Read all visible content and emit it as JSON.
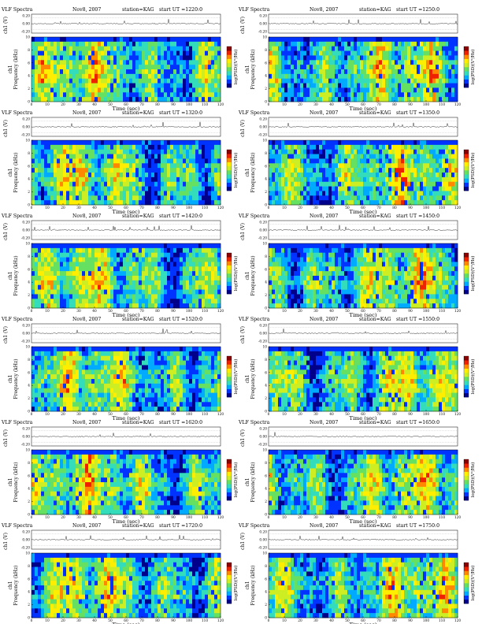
{
  "chart_data": [
    {
      "type": "heatmap",
      "header": "VLF Spectra",
      "date": "Nov8, 2007",
      "station": "station=KAG",
      "start": "start  UT =1220:0",
      "wave_label": "ch1 (V)",
      "wave_ticks": [
        "0.20",
        "0.00",
        "-0.20"
      ],
      "wave_ylim": [
        -0.2,
        0.2
      ],
      "channel": "ch1",
      "ylabel": "Frequency (kHz)",
      "yticks": [
        "0",
        "2",
        "4",
        "6",
        "8",
        "10"
      ],
      "ylim": [
        0,
        10
      ],
      "xlabel": "Time (sec)",
      "xticks": [
        "0",
        "10",
        "20",
        "30",
        "40",
        "50",
        "60",
        "70",
        "80",
        "90",
        "100",
        "110",
        "120"
      ],
      "xlim": [
        0,
        120
      ],
      "colorbar_label": "log(PSD)(V²/Hz)"
    },
    {
      "type": "heatmap",
      "header": "VLF Spectra",
      "date": "Nov8, 2007",
      "station": "station=KAG",
      "start": "start  UT =1250:0",
      "wave_label": "ch1 (V)",
      "wave_ticks": [
        "0.20",
        "0.00",
        "-0.20"
      ],
      "wave_ylim": [
        -0.2,
        0.2
      ],
      "channel": "ch1",
      "ylabel": "Frequency (kHz)",
      "yticks": [
        "0",
        "2",
        "4",
        "6",
        "8",
        "10"
      ],
      "ylim": [
        0,
        10
      ],
      "xlabel": "Time (sec)",
      "xticks": [
        "0",
        "10",
        "20",
        "30",
        "40",
        "50",
        "60",
        "70",
        "80",
        "90",
        "100",
        "110",
        "120"
      ],
      "xlim": [
        0,
        120
      ],
      "colorbar_label": "log(PSD)(V²/Hz)"
    },
    {
      "type": "heatmap",
      "header": "VLF Spectra",
      "date": "Nov8, 2007",
      "station": "station=KAG",
      "start": "start  UT =1320:0",
      "wave_label": "ch1 (V)",
      "wave_ticks": [
        "0.20",
        "0.00",
        "-0.20"
      ],
      "wave_ylim": [
        -0.2,
        0.2
      ],
      "channel": "ch1",
      "ylabel": "Frequency (kHz)",
      "yticks": [
        "0",
        "2",
        "4",
        "6",
        "8",
        "10"
      ],
      "ylim": [
        0,
        10
      ],
      "xlabel": "Time (sec)",
      "xticks": [
        "0",
        "10",
        "20",
        "30",
        "40",
        "50",
        "60",
        "70",
        "80",
        "90",
        "100",
        "110",
        "120"
      ],
      "xlim": [
        0,
        120
      ],
      "colorbar_label": "log(PSD)(V²/Hz)"
    },
    {
      "type": "heatmap",
      "header": "VLF Spectra",
      "date": "Nov8, 2007",
      "station": "station=KAG",
      "start": "start  UT =1350:0",
      "wave_label": "ch1 (V)",
      "wave_ticks": [
        "0.20",
        "0.00",
        "-0.20"
      ],
      "wave_ylim": [
        -0.2,
        0.2
      ],
      "channel": "ch1",
      "ylabel": "Frequency (kHz)",
      "yticks": [
        "0",
        "2",
        "4",
        "6",
        "8",
        "10"
      ],
      "ylim": [
        0,
        10
      ],
      "xlabel": "Time (sec)",
      "xticks": [
        "0",
        "10",
        "20",
        "30",
        "40",
        "50",
        "60",
        "70",
        "80",
        "90",
        "100",
        "110",
        "120"
      ],
      "xlim": [
        0,
        120
      ],
      "colorbar_label": "log(PSD)(V²/Hz)"
    },
    {
      "type": "heatmap",
      "header": "VLF Spectra",
      "date": "Nov8, 2007",
      "station": "station=KAG",
      "start": "start  UT =1420:0",
      "wave_label": "ch1 (V)",
      "wave_ticks": [
        "0.20",
        "0.00",
        "-0.20"
      ],
      "wave_ylim": [
        -0.2,
        0.2
      ],
      "channel": "ch1",
      "ylabel": "Frequency (kHz)",
      "yticks": [
        "0",
        "2",
        "4",
        "6",
        "8",
        "10"
      ],
      "ylim": [
        0,
        10
      ],
      "xlabel": "Time (sec)",
      "xticks": [
        "0",
        "10",
        "20",
        "30",
        "40",
        "50",
        "60",
        "70",
        "80",
        "90",
        "100",
        "110",
        "120"
      ],
      "xlim": [
        0,
        120
      ],
      "colorbar_label": "log(PSD)(V²/Hz)"
    },
    {
      "type": "heatmap",
      "header": "VLF Spectra",
      "date": "Nov8, 2007",
      "station": "station=KAG",
      "start": "start  UT =1450:0",
      "wave_label": "ch1 (V)",
      "wave_ticks": [
        "0.20",
        "0.00",
        "-0.20"
      ],
      "wave_ylim": [
        -0.2,
        0.2
      ],
      "channel": "ch1",
      "ylabel": "Frequency (kHz)",
      "yticks": [
        "0",
        "2",
        "4",
        "6",
        "8",
        "10"
      ],
      "ylim": [
        0,
        10
      ],
      "xlabel": "Time (sec)",
      "xticks": [
        "0",
        "10",
        "20",
        "30",
        "40",
        "50",
        "60",
        "70",
        "80",
        "90",
        "100",
        "110",
        "120"
      ],
      "xlim": [
        0,
        120
      ],
      "colorbar_label": "log(PSD)(V²/Hz)"
    },
    {
      "type": "heatmap",
      "header": "VLF Spectra",
      "date": "Nov8, 2007",
      "station": "station=KAG",
      "start": "start  UT =1520:0",
      "wave_label": "ch1 (V)",
      "wave_ticks": [
        "0.20",
        "0.00",
        "-0.20"
      ],
      "wave_ylim": [
        -0.2,
        0.2
      ],
      "channel": "ch1",
      "ylabel": "Frequency (kHz)",
      "yticks": [
        "0",
        "2",
        "4",
        "6",
        "8",
        "10"
      ],
      "ylim": [
        0,
        10
      ],
      "xlabel": "Time (sec)",
      "xticks": [
        "0",
        "10",
        "20",
        "30",
        "40",
        "50",
        "60",
        "70",
        "80",
        "90",
        "100",
        "110",
        "120"
      ],
      "xlim": [
        0,
        120
      ],
      "colorbar_label": "log(PSD)(V²/Hz)"
    },
    {
      "type": "heatmap",
      "header": "VLF Spectra",
      "date": "Nov8, 2007",
      "station": "station=KAG",
      "start": "start  UT =1550:0",
      "wave_label": "ch1 (V)",
      "wave_ticks": [
        "0.20",
        "0.00",
        "-0.20"
      ],
      "wave_ylim": [
        -0.2,
        0.2
      ],
      "channel": "ch1",
      "ylabel": "Frequency (kHz)",
      "yticks": [
        "0",
        "2",
        "4",
        "6",
        "8",
        "10"
      ],
      "ylim": [
        0,
        10
      ],
      "xlabel": "Time (sec)",
      "xticks": [
        "0",
        "10",
        "20",
        "30",
        "40",
        "50",
        "60",
        "70",
        "80",
        "90",
        "100",
        "110",
        "120"
      ],
      "xlim": [
        0,
        120
      ],
      "colorbar_label": "log(PSD)(V²/Hz)"
    },
    {
      "type": "heatmap",
      "header": "VLF Spectra",
      "date": "Nov8, 2007",
      "station": "station=KAG",
      "start": "start  UT =1620:0",
      "wave_label": "ch1 (V)",
      "wave_ticks": [
        "0.20",
        "0.00",
        "-0.20"
      ],
      "wave_ylim": [
        -0.2,
        0.2
      ],
      "channel": "ch1",
      "ylabel": "Frequency (kHz)",
      "yticks": [
        "0",
        "2",
        "4",
        "6",
        "8",
        "10"
      ],
      "ylim": [
        0,
        10
      ],
      "xlabel": "Time (sec)",
      "xticks": [
        "0",
        "10",
        "20",
        "30",
        "40",
        "50",
        "60",
        "70",
        "80",
        "90",
        "100",
        "110",
        "120"
      ],
      "xlim": [
        0,
        120
      ],
      "colorbar_label": "log(PSD)(V²/Hz)"
    },
    {
      "type": "heatmap",
      "header": "VLF Spectra",
      "date": "Nov8, 2007",
      "station": "station=KAG",
      "start": "start  UT =1650:0",
      "wave_label": "ch1 (V)",
      "wave_ticks": [
        "0.20",
        "0.00",
        "-0.20"
      ],
      "wave_ylim": [
        -0.2,
        0.2
      ],
      "channel": "ch1",
      "ylabel": "Frequency (kHz)",
      "yticks": [
        "0",
        "2",
        "4",
        "6",
        "8",
        "10"
      ],
      "ylim": [
        0,
        10
      ],
      "xlabel": "Time (sec)",
      "xticks": [
        "0",
        "10",
        "20",
        "30",
        "40",
        "50",
        "60",
        "70",
        "80",
        "90",
        "100",
        "110",
        "120"
      ],
      "xlim": [
        0,
        120
      ],
      "colorbar_label": "log(PSD)(V²/Hz)"
    },
    {
      "type": "heatmap",
      "header": "VLF Spectra",
      "date": "Nov8, 2007",
      "station": "station=KAG",
      "start": "start  UT =1720:0",
      "wave_label": "ch1 (V)",
      "wave_ticks": [
        "0.20",
        "0.00",
        "-0.20"
      ],
      "wave_ylim": [
        -0.2,
        0.2
      ],
      "channel": "ch1",
      "ylabel": "Frequency (kHz)",
      "yticks": [
        "0",
        "2",
        "4",
        "6",
        "8",
        "10"
      ],
      "ylim": [
        0,
        10
      ],
      "xlabel": "Time (sec)",
      "xticks": [
        "0",
        "10",
        "20",
        "30",
        "40",
        "50",
        "60",
        "70",
        "80",
        "90",
        "100",
        "110",
        "120"
      ],
      "xlim": [
        0,
        120
      ],
      "colorbar_label": "log(PSD)(V²/Hz)"
    },
    {
      "type": "heatmap",
      "header": "VLF Spectra",
      "date": "Nov8, 2007",
      "station": "station=KAG",
      "start": "start  UT =1750:0",
      "wave_label": "ch1 (V)",
      "wave_ticks": [
        "0.20",
        "0.00",
        "-0.20"
      ],
      "wave_ylim": [
        -0.2,
        0.2
      ],
      "channel": "ch1",
      "ylabel": "Frequency (kHz)",
      "yticks": [
        "0",
        "2",
        "4",
        "6",
        "8",
        "10"
      ],
      "ylim": [
        0,
        10
      ],
      "xlabel": "Time (sec)",
      "xticks": [
        "0",
        "10",
        "20",
        "30",
        "40",
        "50",
        "60",
        "70",
        "80",
        "90",
        "100",
        "110",
        "120"
      ],
      "xlim": [
        0,
        120
      ],
      "colorbar_label": "log(PSD)(V²/Hz)"
    }
  ],
  "colormap": [
    "#00008b",
    "#0033ff",
    "#00aaff",
    "#33ddbb",
    "#66e060",
    "#ccee22",
    "#ffee00",
    "#ff8800",
    "#ee2200",
    "#8b0000"
  ]
}
